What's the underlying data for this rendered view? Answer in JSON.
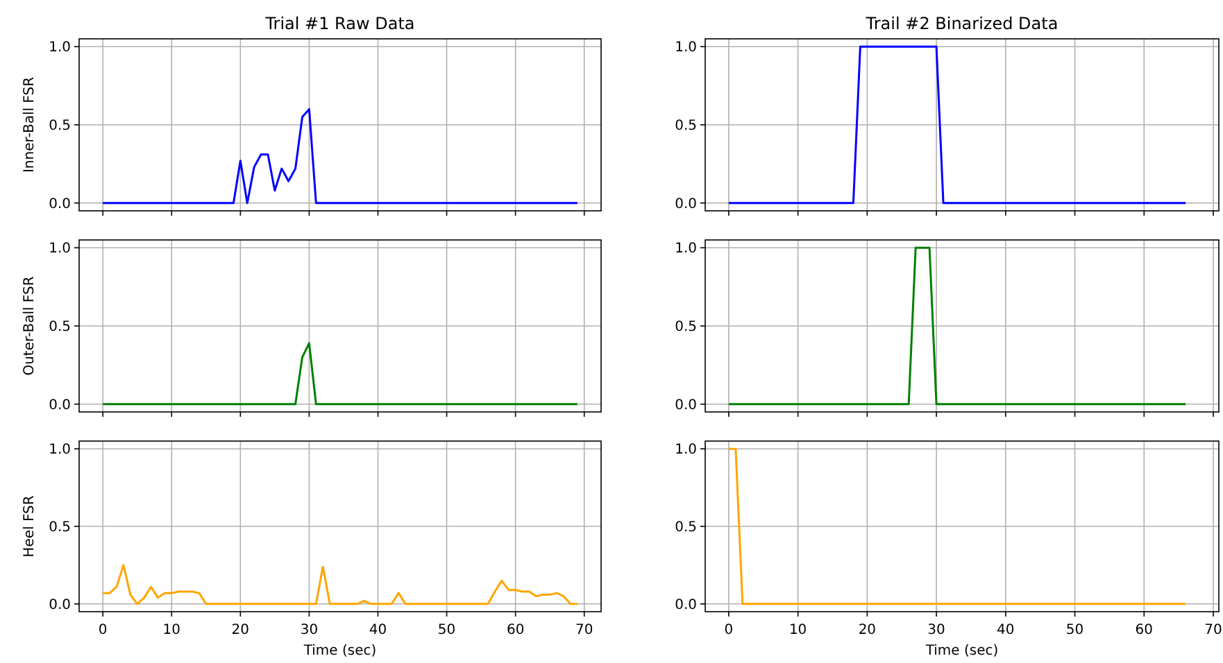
{
  "chart_data": [
    {
      "type": "line",
      "title": "Trial #1 Raw Data",
      "ylabel": "Inner-Ball FSR",
      "x": [
        0,
        1,
        2,
        3,
        4,
        5,
        6,
        7,
        8,
        9,
        10,
        11,
        12,
        13,
        14,
        15,
        16,
        17,
        18,
        19,
        20,
        21,
        22,
        23,
        24,
        25,
        26,
        27,
        28,
        29,
        30,
        31,
        32,
        33,
        34,
        35,
        36,
        37,
        38,
        39,
        40,
        41,
        42,
        43,
        44,
        45,
        46,
        47,
        48,
        49,
        50,
        51,
        52,
        53,
        54,
        55,
        56,
        57,
        58,
        59,
        60,
        61,
        62,
        63,
        64,
        65,
        66,
        67,
        68,
        69
      ],
      "series": [
        {
          "color": "#0000ff",
          "values": [
            0,
            0,
            0,
            0,
            0,
            0,
            0,
            0,
            0,
            0,
            0,
            0,
            0,
            0,
            0,
            0,
            0,
            0,
            0,
            0,
            0.27,
            0,
            0.23,
            0.31,
            0.31,
            0.08,
            0.22,
            0.14,
            0.22,
            0.55,
            0.6,
            0,
            0,
            0,
            0,
            0,
            0,
            0,
            0,
            0,
            0,
            0,
            0,
            0,
            0,
            0,
            0,
            0,
            0,
            0,
            0,
            0,
            0,
            0,
            0,
            0,
            0,
            0,
            0,
            0,
            0,
            0,
            0,
            0,
            0,
            0,
            0,
            0,
            0,
            0
          ]
        }
      ],
      "xlim": [
        -3.45,
        72.45
      ],
      "ylim": [
        -0.05,
        1.05
      ],
      "xticks": [
        0,
        10,
        20,
        30,
        40,
        50,
        60,
        70
      ],
      "yticks": [
        {
          "value": 0,
          "label": "0.0"
        },
        {
          "value": 0.5,
          "label": "0.5"
        },
        {
          "value": 1,
          "label": "1.0"
        }
      ],
      "grid": true,
      "tick_labels": "y"
    },
    {
      "type": "line",
      "title": "Trail #2 Binarized Data",
      "x": [
        0,
        1,
        2,
        3,
        4,
        5,
        6,
        7,
        8,
        9,
        10,
        11,
        12,
        13,
        14,
        15,
        16,
        17,
        18,
        19,
        20,
        21,
        22,
        23,
        24,
        25,
        26,
        27,
        28,
        29,
        30,
        31,
        32,
        33,
        34,
        35,
        36,
        37,
        38,
        39,
        40,
        41,
        42,
        43,
        44,
        45,
        46,
        47,
        48,
        49,
        50,
        51,
        52,
        53,
        54,
        55,
        56,
        57,
        58,
        59,
        60,
        61,
        62,
        63,
        64,
        65,
        66
      ],
      "series": [
        {
          "color": "#0000ff",
          "values": [
            0,
            0,
            0,
            0,
            0,
            0,
            0,
            0,
            0,
            0,
            0,
            0,
            0,
            0,
            0,
            0,
            0,
            0,
            0,
            1,
            1,
            1,
            1,
            1,
            1,
            1,
            1,
            1,
            1,
            1,
            1,
            0,
            0,
            0,
            0,
            0,
            0,
            0,
            0,
            0,
            0,
            0,
            0,
            0,
            0,
            0,
            0,
            0,
            0,
            0,
            0,
            0,
            0,
            0,
            0,
            0,
            0,
            0,
            0,
            0,
            0,
            0,
            0,
            0,
            0,
            0,
            0
          ]
        }
      ],
      "xlim": [
        -3.4,
        70.8
      ],
      "ylim": [
        -0.05,
        1.05
      ],
      "xticks": [
        0,
        10,
        20,
        30,
        40,
        50,
        60,
        70
      ],
      "yticks": [
        {
          "value": 0,
          "label": "0.0"
        },
        {
          "value": 0.5,
          "label": "0.5"
        },
        {
          "value": 1,
          "label": "1.0"
        }
      ],
      "grid": true,
      "tick_labels": "y"
    },
    {
      "type": "line",
      "ylabel": "Outer-Ball FSR",
      "x": [
        0,
        1,
        2,
        3,
        4,
        5,
        6,
        7,
        8,
        9,
        10,
        11,
        12,
        13,
        14,
        15,
        16,
        17,
        18,
        19,
        20,
        21,
        22,
        23,
        24,
        25,
        26,
        27,
        28,
        29,
        30,
        31,
        32,
        33,
        34,
        35,
        36,
        37,
        38,
        39,
        40,
        41,
        42,
        43,
        44,
        45,
        46,
        47,
        48,
        49,
        50,
        51,
        52,
        53,
        54,
        55,
        56,
        57,
        58,
        59,
        60,
        61,
        62,
        63,
        64,
        65,
        66,
        67,
        68,
        69
      ],
      "series": [
        {
          "color": "#008000",
          "values": [
            0,
            0,
            0,
            0,
            0,
            0,
            0,
            0,
            0,
            0,
            0,
            0,
            0,
            0,
            0,
            0,
            0,
            0,
            0,
            0,
            0,
            0,
            0,
            0,
            0,
            0,
            0,
            0,
            0,
            0.3,
            0.39,
            0,
            0,
            0,
            0,
            0,
            0,
            0,
            0,
            0,
            0,
            0,
            0,
            0,
            0,
            0,
            0,
            0,
            0,
            0,
            0,
            0,
            0,
            0,
            0,
            0,
            0,
            0,
            0,
            0,
            0,
            0,
            0,
            0,
            0,
            0,
            0,
            0,
            0,
            0
          ]
        }
      ],
      "xlim": [
        -3.45,
        72.45
      ],
      "ylim": [
        -0.05,
        1.05
      ],
      "xticks": [
        0,
        10,
        20,
        30,
        40,
        50,
        60,
        70
      ],
      "yticks": [
        {
          "value": 0,
          "label": "0.0"
        },
        {
          "value": 0.5,
          "label": "0.5"
        },
        {
          "value": 1,
          "label": "1.0"
        }
      ],
      "grid": true,
      "tick_labels": "y"
    },
    {
      "type": "line",
      "x": [
        0,
        1,
        2,
        3,
        4,
        5,
        6,
        7,
        8,
        9,
        10,
        11,
        12,
        13,
        14,
        15,
        16,
        17,
        18,
        19,
        20,
        21,
        22,
        23,
        24,
        25,
        26,
        27,
        28,
        29,
        30,
        31,
        32,
        33,
        34,
        35,
        36,
        37,
        38,
        39,
        40,
        41,
        42,
        43,
        44,
        45,
        46,
        47,
        48,
        49,
        50,
        51,
        52,
        53,
        54,
        55,
        56,
        57,
        58,
        59,
        60,
        61,
        62,
        63,
        64,
        65,
        66
      ],
      "series": [
        {
          "color": "#008000",
          "values": [
            0,
            0,
            0,
            0,
            0,
            0,
            0,
            0,
            0,
            0,
            0,
            0,
            0,
            0,
            0,
            0,
            0,
            0,
            0,
            0,
            0,
            0,
            0,
            0,
            0,
            0,
            0,
            1,
            1,
            1,
            0,
            0,
            0,
            0,
            0,
            0,
            0,
            0,
            0,
            0,
            0,
            0,
            0,
            0,
            0,
            0,
            0,
            0,
            0,
            0,
            0,
            0,
            0,
            0,
            0,
            0,
            0,
            0,
            0,
            0,
            0,
            0,
            0,
            0,
            0,
            0,
            0
          ]
        }
      ],
      "xlim": [
        -3.4,
        70.8
      ],
      "ylim": [
        -0.05,
        1.05
      ],
      "xticks": [
        0,
        10,
        20,
        30,
        40,
        50,
        60,
        70
      ],
      "yticks": [
        {
          "value": 0,
          "label": "0.0"
        },
        {
          "value": 0.5,
          "label": "0.5"
        },
        {
          "value": 1,
          "label": "1.0"
        }
      ],
      "grid": true,
      "tick_labels": "y"
    },
    {
      "type": "line",
      "ylabel": "Heel FSR",
      "xlabel": "Time (sec)",
      "x": [
        0,
        1,
        2,
        3,
        4,
        5,
        6,
        7,
        8,
        9,
        10,
        11,
        12,
        13,
        14,
        15,
        16,
        17,
        18,
        19,
        20,
        21,
        22,
        23,
        24,
        25,
        26,
        27,
        28,
        29,
        30,
        31,
        32,
        33,
        34,
        35,
        36,
        37,
        38,
        39,
        40,
        41,
        42,
        43,
        44,
        45,
        46,
        47,
        48,
        49,
        50,
        51,
        52,
        53,
        54,
        55,
        56,
        57,
        58,
        59,
        60,
        61,
        62,
        63,
        64,
        65,
        66,
        67,
        68,
        69
      ],
      "series": [
        {
          "color": "#ffa500",
          "values": [
            0.07,
            0.07,
            0.11,
            0.25,
            0.06,
            0,
            0.04,
            0.11,
            0.04,
            0.07,
            0.07,
            0.08,
            0.08,
            0.08,
            0.07,
            0,
            0,
            0,
            0,
            0,
            0,
            0,
            0,
            0,
            0,
            0,
            0,
            0,
            0,
            0,
            0,
            0,
            0.24,
            0,
            0,
            0,
            0,
            0,
            0.02,
            0,
            0,
            0,
            0,
            0.07,
            0,
            0,
            0,
            0,
            0,
            0,
            0,
            0,
            0,
            0,
            0,
            0,
            0,
            0.08,
            0.15,
            0.09,
            0.09,
            0.08,
            0.08,
            0.05,
            0.06,
            0.06,
            0.07,
            0.05,
            0,
            0
          ]
        }
      ],
      "xlim": [
        -3.45,
        72.45
      ],
      "ylim": [
        -0.05,
        1.05
      ],
      "xticks": [
        0,
        10,
        20,
        30,
        40,
        50,
        60,
        70
      ],
      "yticks": [
        {
          "value": 0,
          "label": "0.0"
        },
        {
          "value": 0.5,
          "label": "0.5"
        },
        {
          "value": 1,
          "label": "1.0"
        }
      ],
      "grid": true
    },
    {
      "type": "line",
      "xlabel": "Time (sec)",
      "x": [
        0,
        1,
        2,
        3,
        4,
        5,
        6,
        7,
        8,
        9,
        10,
        11,
        12,
        13,
        14,
        15,
        16,
        17,
        18,
        19,
        20,
        21,
        22,
        23,
        24,
        25,
        26,
        27,
        28,
        29,
        30,
        31,
        32,
        33,
        34,
        35,
        36,
        37,
        38,
        39,
        40,
        41,
        42,
        43,
        44,
        45,
        46,
        47,
        48,
        49,
        50,
        51,
        52,
        53,
        54,
        55,
        56,
        57,
        58,
        59,
        60,
        61,
        62,
        63,
        64,
        65,
        66
      ],
      "series": [
        {
          "color": "#ffa500",
          "values": [
            1,
            1,
            0,
            0,
            0,
            0,
            0,
            0,
            0,
            0,
            0,
            0,
            0,
            0,
            0,
            0,
            0,
            0,
            0,
            0,
            0,
            0,
            0,
            0,
            0,
            0,
            0,
            0,
            0,
            0,
            0,
            0,
            0,
            0,
            0,
            0,
            0,
            0,
            0,
            0,
            0,
            0,
            0,
            0,
            0,
            0,
            0,
            0,
            0,
            0,
            0,
            0,
            0,
            0,
            0,
            0,
            0,
            0,
            0,
            0,
            0,
            0,
            0,
            0,
            0,
            0,
            0
          ]
        }
      ],
      "xlim": [
        -3.4,
        70.8
      ],
      "ylim": [
        -0.05,
        1.05
      ],
      "xticks": [
        0,
        10,
        20,
        30,
        40,
        50,
        60,
        70
      ],
      "yticks": [
        {
          "value": 0,
          "label": "0.0"
        },
        {
          "value": 0.5,
          "label": "0.5"
        },
        {
          "value": 1,
          "label": "1.0"
        }
      ],
      "grid": true
    }
  ]
}
